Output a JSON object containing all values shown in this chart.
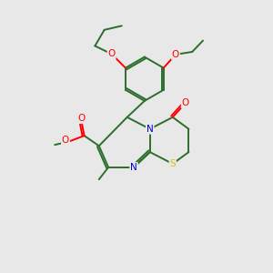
{
  "bg_color": "#e8e8e8",
  "bond_color": "#2d6e2d",
  "atom_colors": {
    "O": "#ff0000",
    "N": "#0000cc",
    "S": "#cccc00",
    "C": "#2d6e2d"
  },
  "figsize": [
    3.0,
    3.0
  ],
  "dpi": 100,
  "xlim": [
    0,
    10
  ],
  "ylim": [
    0,
    10
  ]
}
